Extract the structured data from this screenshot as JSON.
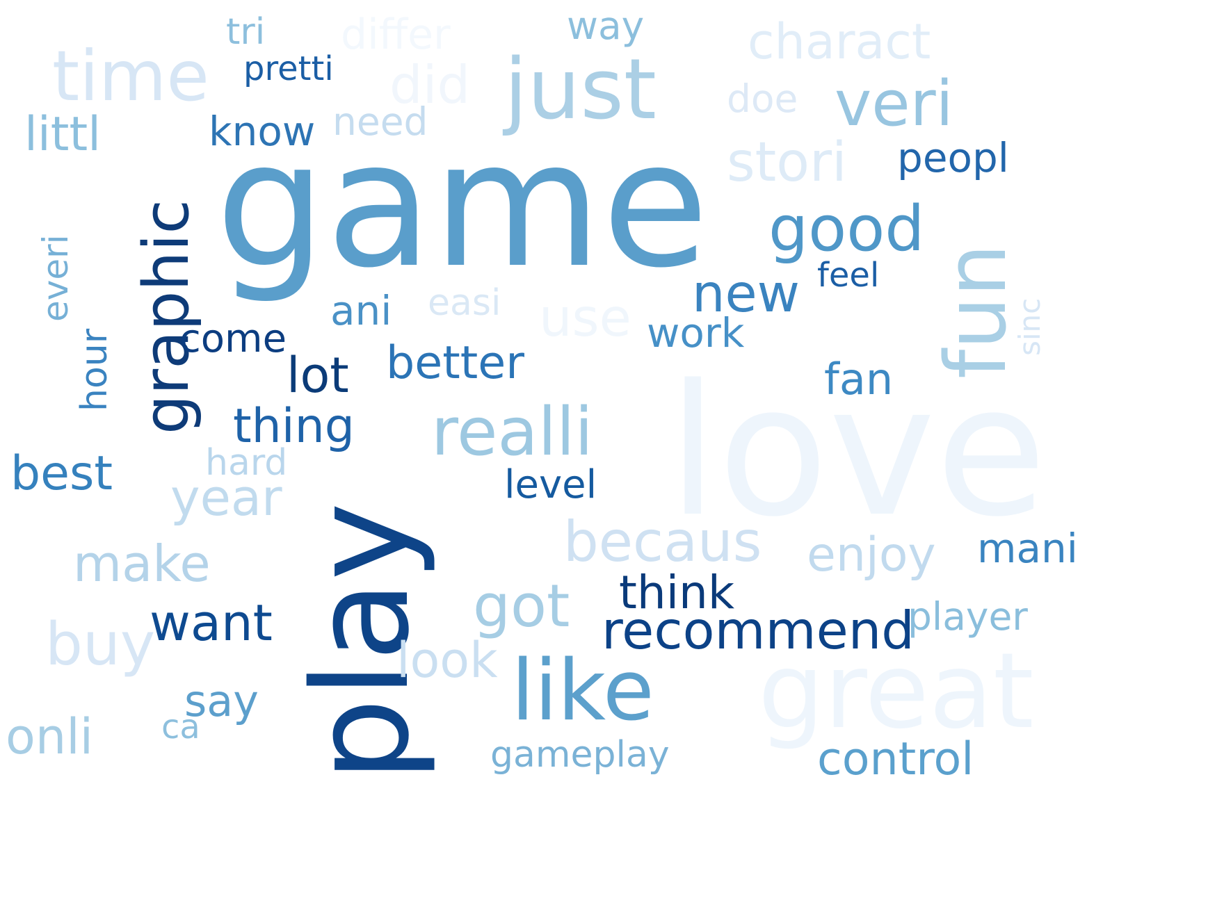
{
  "word_cloud": {
    "words": [
      {
        "text": "game",
        "color": "#5a9ecb",
        "vertical": false
      },
      {
        "text": "love",
        "color": "#eef5fc",
        "vertical": false
      },
      {
        "text": "play",
        "color": "#0e4488",
        "vertical": true
      },
      {
        "text": "great",
        "color": "#eef5fc",
        "vertical": false
      },
      {
        "text": "just",
        "color": "#abcfe5",
        "vertical": false
      },
      {
        "text": "like",
        "color": "#5ca0cc",
        "vertical": false
      },
      {
        "text": "time",
        "color": "#d7e6f5",
        "vertical": false
      },
      {
        "text": "fun",
        "color": "#a9cfe5",
        "vertical": true
      },
      {
        "text": "graphic",
        "color": "#0e3b78",
        "vertical": true
      },
      {
        "text": "realli",
        "color": "#9dc8e1",
        "vertical": false
      },
      {
        "text": "good",
        "color": "#4f97c8",
        "vertical": false
      },
      {
        "text": "veri",
        "color": "#98c5e0",
        "vertical": false
      },
      {
        "text": "recommend",
        "color": "#0c4287",
        "vertical": false
      },
      {
        "text": "got",
        "color": "#a6cde4",
        "vertical": false
      },
      {
        "text": "becaus",
        "color": "#cfe1f2",
        "vertical": false
      },
      {
        "text": "buy",
        "color": "#d7e6f5",
        "vertical": false
      },
      {
        "text": "stori",
        "color": "#deebf7",
        "vertical": false
      },
      {
        "text": "charact",
        "color": "#e1edf8",
        "vertical": false
      },
      {
        "text": "new",
        "color": "#3a83bf",
        "vertical": false
      },
      {
        "text": "year",
        "color": "#c1dbee",
        "vertical": false
      },
      {
        "text": "make",
        "color": "#b4d3e9",
        "vertical": false
      },
      {
        "text": "enjoy",
        "color": "#c1daee",
        "vertical": false
      },
      {
        "text": "want",
        "color": "#0e4a90",
        "vertical": false
      },
      {
        "text": "thing",
        "color": "#1e62a8",
        "vertical": false
      },
      {
        "text": "lot",
        "color": "#0b3b78",
        "vertical": false
      },
      {
        "text": "better",
        "color": "#2b74b6",
        "vertical": false
      },
      {
        "text": "best",
        "color": "#3581bd",
        "vertical": false
      },
      {
        "text": "onli",
        "color": "#a7cde4",
        "vertical": false
      },
      {
        "text": "think",
        "color": "#0a3a7a",
        "vertical": false
      },
      {
        "text": "control",
        "color": "#5aa0cd",
        "vertical": false
      },
      {
        "text": "look",
        "color": "#cadff1",
        "vertical": false
      },
      {
        "text": "use",
        "color": "#f0f6fc",
        "vertical": false
      },
      {
        "text": "did",
        "color": "#f1f6fc",
        "vertical": false
      },
      {
        "text": "differ",
        "color": "#f3f8fd",
        "vertical": false
      },
      {
        "text": "littl",
        "color": "#8cbfdd",
        "vertical": false
      },
      {
        "text": "fan",
        "color": "#3d89c3",
        "vertical": false
      },
      {
        "text": "work",
        "color": "#4690c7",
        "vertical": false
      },
      {
        "text": "mani",
        "color": "#3a84c0",
        "vertical": false
      },
      {
        "text": "player",
        "color": "#8abedc",
        "vertical": false
      },
      {
        "text": "say",
        "color": "#5c9fcc",
        "vertical": false
      },
      {
        "text": "know",
        "color": "#2d74b4",
        "vertical": false
      },
      {
        "text": "peopl",
        "color": "#2266ab",
        "vertical": false
      },
      {
        "text": "come",
        "color": "#0c3d80",
        "vertical": false
      },
      {
        "text": "ani",
        "color": "#4a91c6",
        "vertical": false
      },
      {
        "text": "level",
        "color": "#155a9f",
        "vertical": false
      },
      {
        "text": "gameplay",
        "color": "#7ab2d6",
        "vertical": false
      },
      {
        "text": "hour",
        "color": "#3a83c0",
        "vertical": true
      },
      {
        "text": "everi",
        "color": "#76b0d6",
        "vertical": true
      },
      {
        "text": "hard",
        "color": "#b9d6ec",
        "vertical": false
      },
      {
        "text": "way",
        "color": "#8cbfdd",
        "vertical": false
      },
      {
        "text": "tri",
        "color": "#8dbfdd",
        "vertical": false
      },
      {
        "text": "pretti",
        "color": "#1b5ea5",
        "vertical": false
      },
      {
        "text": "need",
        "color": "#c5dcef",
        "vertical": false
      },
      {
        "text": "doe",
        "color": "#dde9f6",
        "vertical": false
      },
      {
        "text": "easi",
        "color": "#dae8f5",
        "vertical": false
      },
      {
        "text": "feel",
        "color": "#1b5ea5",
        "vertical": false
      },
      {
        "text": "sinc",
        "color": "#d7e6f5",
        "vertical": true
      },
      {
        "text": "ca",
        "color": "#8dbfdd",
        "vertical": false
      }
    ]
  }
}
